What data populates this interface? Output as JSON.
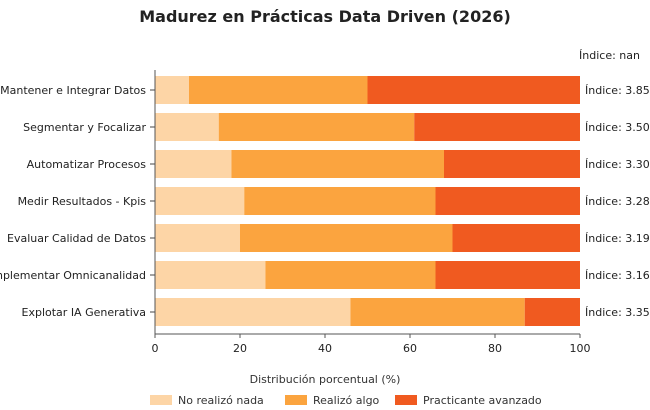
{
  "chart_data": {
    "type": "bar",
    "orientation": "horizontal",
    "stacked": true,
    "title": "Madurez en Prácticas Data Driven (2026)",
    "xlabel": "Distribución porcentual (%)",
    "ylabel": "",
    "xlim": [
      0,
      100
    ],
    "x_ticks": [
      "0",
      "20",
      "40",
      "60",
      "80",
      "100"
    ],
    "grid": false,
    "legend_position": "bottom",
    "top_note": "Índice: nan",
    "categories": [
      "Mantener e Integrar Datos",
      "Segmentar y Focalizar",
      "Automatizar Procesos",
      "Medir Resultados - Kpis",
      "Evaluar Calidad de Datos",
      "Implementar Omnicanalidad",
      "Explotar IA Generativa"
    ],
    "indices": [
      "Índice: 3.85",
      "Índice: 3.50",
      "Índice: 3.30",
      "Índice: 3.28",
      "Índice: 3.19",
      "Índice: 3.16",
      "Índice: 3.35"
    ],
    "series": [
      {
        "name": "No realizó nada",
        "color": "#fdd5a6",
        "values": [
          8,
          15,
          18,
          21,
          20,
          26,
          46
        ]
      },
      {
        "name": "Realizó algo",
        "color": "#fba43f",
        "values": [
          42,
          46,
          50,
          45,
          50,
          40,
          41
        ]
      },
      {
        "name": "Practicante avanzado",
        "color": "#f05a20",
        "values": [
          50,
          39,
          32,
          34,
          30,
          34,
          13
        ]
      }
    ]
  }
}
